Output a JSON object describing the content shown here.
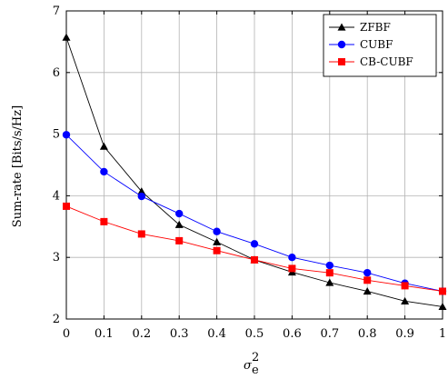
{
  "chart_data": {
    "type": "line",
    "x": [
      0,
      0.1,
      0.2,
      0.3,
      0.4,
      0.5,
      0.6,
      0.7,
      0.8,
      0.9,
      1
    ],
    "x_tick_labels": [
      "0",
      "0.1",
      "0.2",
      "0.3",
      "0.4",
      "0.5",
      "0.6",
      "0.7",
      "0.8",
      "0.9",
      "1"
    ],
    "y_tick_labels": [
      "2",
      "3",
      "4",
      "5",
      "6",
      "7"
    ],
    "xlim": [
      0,
      1
    ],
    "ylim": [
      2,
      7
    ],
    "grid": true,
    "legend_position": "top-right",
    "xlabel": "σ",
    "xlabel_superscript": "2",
    "xlabel_subscript": "e",
    "ylabel": "Sum-rate [Bits/s/Hz]",
    "series": [
      {
        "name": "ZFBF",
        "color": "#000000",
        "marker": "triangle",
        "values": [
          6.57,
          4.8,
          4.07,
          3.53,
          3.25,
          2.96,
          2.76,
          2.59,
          2.45,
          2.29,
          2.2
        ]
      },
      {
        "name": "CUBF",
        "color": "#0000ff",
        "marker": "circle",
        "values": [
          4.99,
          4.39,
          3.99,
          3.71,
          3.42,
          3.22,
          3.0,
          2.87,
          2.75,
          2.58,
          2.45
        ]
      },
      {
        "name": "CB-CUBF",
        "color": "#ff0000",
        "marker": "square",
        "values": [
          3.83,
          3.58,
          3.38,
          3.27,
          3.11,
          2.96,
          2.82,
          2.75,
          2.63,
          2.54,
          2.45
        ]
      }
    ]
  }
}
